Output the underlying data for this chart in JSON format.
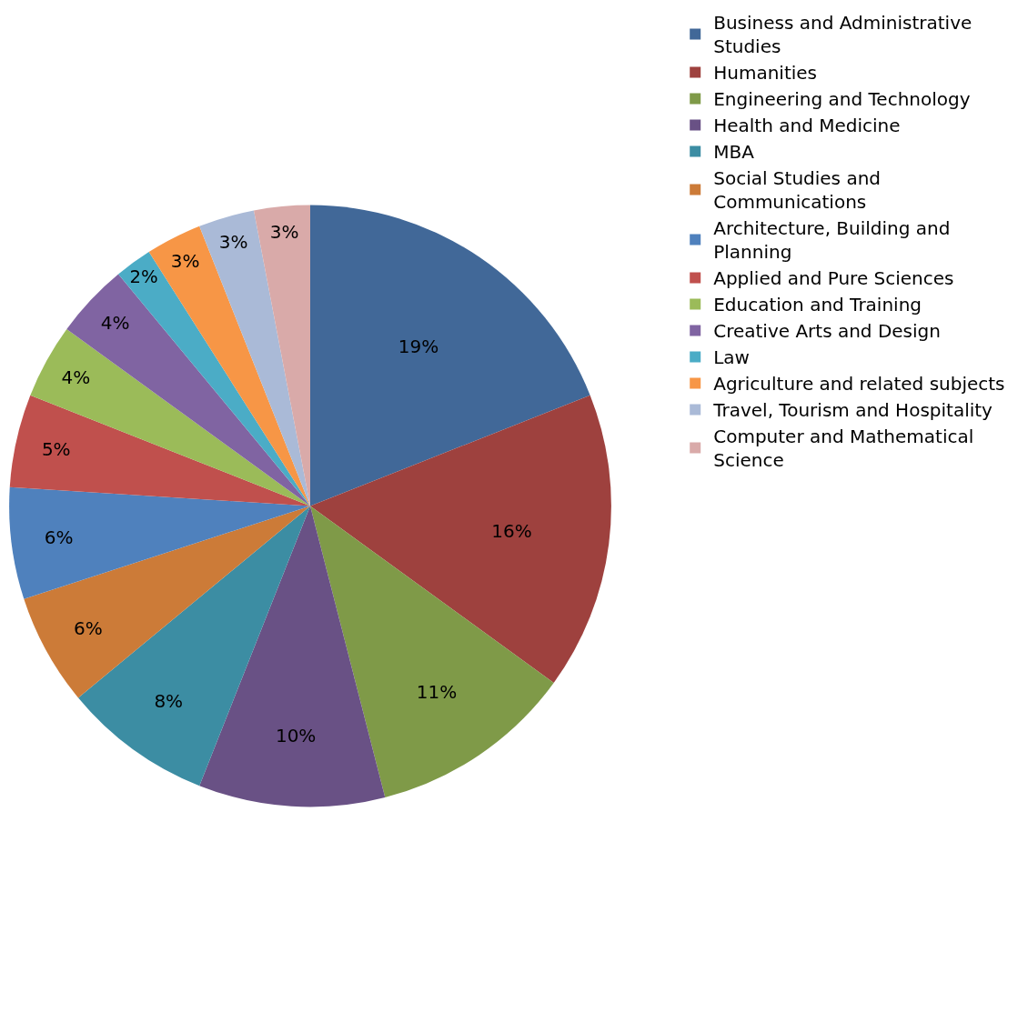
{
  "chart_data": {
    "type": "pie",
    "categories": [
      "Business and Administrative Studies",
      "Humanities",
      "Engineering and Technology",
      "Health and Medicine",
      "MBA",
      "Social Studies and Communications",
      "Architecture, Building and Planning",
      "Applied and Pure Sciences",
      "Education and Training",
      "Creative Arts and Design",
      "Law",
      "Agriculture and related subjects",
      "Travel, Tourism and Hospitality",
      "Computer and Mathematical Science"
    ],
    "values": [
      19,
      16,
      11,
      10,
      8,
      6,
      6,
      5,
      4,
      4,
      2,
      3,
      3,
      3
    ],
    "value_labels": [
      "19%",
      "16%",
      "11%",
      "10%",
      "8%",
      "6%",
      "6%",
      "5%",
      "4%",
      "4%",
      "2%",
      "3%",
      "3%",
      "3%"
    ],
    "colors": [
      "#416898",
      "#9e413e",
      "#7f9a48",
      "#695185",
      "#3c8da3",
      "#cc7b38",
      "#4f81bd",
      "#c0504d",
      "#9bbb59",
      "#8064a2",
      "#4bacc6",
      "#f79646",
      "#aabad7",
      "#d9aaa9"
    ],
    "legend": "right"
  }
}
